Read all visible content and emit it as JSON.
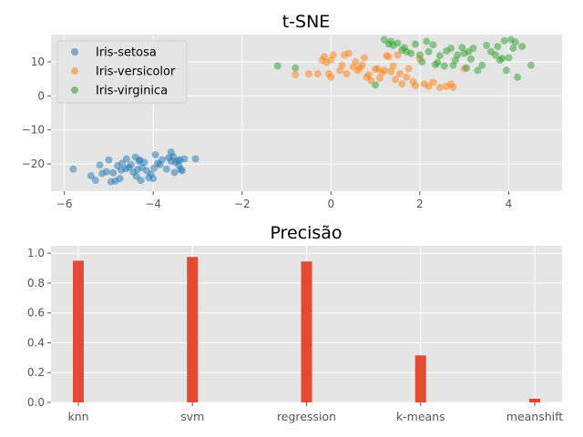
{
  "chart_data": [
    {
      "type": "scatter",
      "title": "t-SNE",
      "xlabel": "",
      "ylabel": "",
      "xlim": [
        -6.3,
        5.2
      ],
      "ylim": [
        -28,
        18
      ],
      "xticks": [
        -6,
        -4,
        -2,
        0,
        2,
        4
      ],
      "xtick_labels": [
        "−6",
        "−4",
        "−2",
        "0",
        "2",
        "4"
      ],
      "yticks": [
        -20,
        -10,
        0,
        10
      ],
      "ytick_labels": [
        "−20",
        "−10",
        "0",
        "10"
      ],
      "grid": true,
      "legend_position": "top-left",
      "series": [
        {
          "name": "Iris-setosa",
          "color": "#1f77b4",
          "points": [
            [
              -5.8,
              -21.5
            ],
            [
              -5.4,
              -23.5
            ],
            [
              -5.3,
              -24.8
            ],
            [
              -5.2,
              -20.3
            ],
            [
              -5.15,
              -22.8
            ],
            [
              -5.05,
              -22.3
            ],
            [
              -5.0,
              -18.8
            ],
            [
              -4.95,
              -25.2
            ],
            [
              -4.9,
              -22.6
            ],
            [
              -4.85,
              -25.0
            ],
            [
              -4.8,
              -20.5
            ],
            [
              -4.75,
              -24.3
            ],
            [
              -4.72,
              -21.8
            ],
            [
              -4.7,
              -19.8
            ],
            [
              -4.6,
              -18.5
            ],
            [
              -4.55,
              -21.0
            ],
            [
              -4.5,
              -20.2
            ],
            [
              -4.45,
              -22.4
            ],
            [
              -4.4,
              -18.0
            ],
            [
              -4.38,
              -23.6
            ],
            [
              -4.35,
              -21.6
            ],
            [
              -4.32,
              -19.2
            ],
            [
              -4.3,
              -18.8
            ],
            [
              -4.28,
              -24.8
            ],
            [
              -4.25,
              -21.0
            ],
            [
              -4.2,
              -19.5
            ],
            [
              -4.15,
              -22.0
            ],
            [
              -4.1,
              -24.0
            ],
            [
              -4.05,
              -23.0
            ],
            [
              -4.0,
              -24.3
            ],
            [
              -3.98,
              -21.2
            ],
            [
              -3.95,
              -17.3
            ],
            [
              -3.9,
              -19.8
            ],
            [
              -3.85,
              -20.2
            ],
            [
              -3.8,
              -18.8
            ],
            [
              -3.7,
              -21.5
            ],
            [
              -3.65,
              -18.2
            ],
            [
              -3.6,
              -16.5
            ],
            [
              -3.55,
              -17.8
            ],
            [
              -3.52,
              -22.5
            ],
            [
              -3.5,
              -19.5
            ],
            [
              -3.45,
              -19.0
            ],
            [
              -3.42,
              -20.5
            ],
            [
              -3.4,
              -18.8
            ],
            [
              -3.38,
              -21.6
            ],
            [
              -3.35,
              -22.0
            ],
            [
              -3.3,
              -18.5
            ],
            [
              -3.05,
              -18.5
            ],
            [
              -3.6,
              -19.2
            ],
            [
              -4.62,
              -21.4
            ]
          ]
        },
        {
          "name": "Iris-versicolor",
          "color": "#ff7f0e",
          "points": [
            [
              -0.8,
              6.2
            ],
            [
              -0.5,
              6.5
            ],
            [
              -0.3,
              6.5
            ],
            [
              -0.2,
              10.5
            ],
            [
              -0.15,
              11.5
            ],
            [
              -0.1,
              9.8
            ],
            [
              -0.05,
              6.5
            ],
            [
              0.0,
              10.5
            ],
            [
              0.0,
              5.5
            ],
            [
              0.05,
              12.0
            ],
            [
              0.2,
              7.5
            ],
            [
              0.25,
              9.0
            ],
            [
              0.3,
              12.0
            ],
            [
              0.35,
              6.5
            ],
            [
              0.4,
              12.5
            ],
            [
              0.5,
              8.5
            ],
            [
              0.55,
              10.0
            ],
            [
              0.6,
              7.5
            ],
            [
              0.65,
              8.2
            ],
            [
              0.7,
              9.0
            ],
            [
              0.75,
              11.2
            ],
            [
              0.8,
              5.5
            ],
            [
              0.85,
              6.2
            ],
            [
              0.9,
              4.5
            ],
            [
              1.0,
              7.8
            ],
            [
              1.05,
              8.0
            ],
            [
              1.1,
              5.2
            ],
            [
              1.15,
              6.8
            ],
            [
              1.2,
              7.5
            ],
            [
              1.25,
              11.8
            ],
            [
              1.3,
              11.5
            ],
            [
              1.35,
              7.2
            ],
            [
              1.4,
              8.8
            ],
            [
              1.45,
              4.8
            ],
            [
              1.5,
              12.0
            ],
            [
              1.55,
              6.5
            ],
            [
              1.6,
              3.5
            ],
            [
              1.7,
              5.5
            ],
            [
              1.75,
              8.0
            ],
            [
              1.85,
              4.2
            ],
            [
              1.9,
              3.0
            ],
            [
              2.0,
              10.8
            ],
            [
              2.1,
              3.5
            ],
            [
              2.2,
              2.8
            ],
            [
              2.3,
              4.0
            ],
            [
              2.45,
              2.5
            ],
            [
              2.6,
              2.8
            ],
            [
              2.7,
              3.5
            ],
            [
              2.75,
              2.5
            ],
            [
              3.0,
              8.0
            ]
          ]
        },
        {
          "name": "Iris-virginica",
          "color": "#2ca02c",
          "points": [
            [
              -1.2,
              8.8
            ],
            [
              -0.8,
              8.2
            ],
            [
              1.0,
              3.2
            ],
            [
              1.2,
              16.5
            ],
            [
              1.3,
              15.2
            ],
            [
              1.35,
              16.0
            ],
            [
              1.4,
              14.8
            ],
            [
              1.5,
              15.5
            ],
            [
              1.6,
              13.5
            ],
            [
              1.65,
              14.2
            ],
            [
              1.7,
              13.0
            ],
            [
              1.8,
              12.5
            ],
            [
              1.9,
              15.2
            ],
            [
              2.0,
              12.0
            ],
            [
              2.05,
              10.0
            ],
            [
              2.15,
              16.0
            ],
            [
              2.2,
              13.0
            ],
            [
              2.3,
              15.0
            ],
            [
              2.35,
              9.2
            ],
            [
              2.4,
              9.8
            ],
            [
              2.45,
              11.8
            ],
            [
              2.55,
              8.8
            ],
            [
              2.6,
              13.2
            ],
            [
              2.7,
              14.0
            ],
            [
              2.75,
              9.0
            ],
            [
              2.8,
              10.5
            ],
            [
              2.85,
              12.0
            ],
            [
              2.95,
              14.2
            ],
            [
              3.0,
              12.5
            ],
            [
              3.05,
              8.2
            ],
            [
              3.1,
              13.0
            ],
            [
              3.15,
              10.8
            ],
            [
              3.2,
              14.0
            ],
            [
              3.3,
              7.5
            ],
            [
              3.4,
              9.0
            ],
            [
              3.5,
              14.8
            ],
            [
              3.6,
              13.0
            ],
            [
              3.7,
              12.0
            ],
            [
              3.75,
              14.5
            ],
            [
              3.8,
              10.5
            ],
            [
              3.85,
              11.0
            ],
            [
              3.9,
              16.2
            ],
            [
              3.95,
              7.5
            ],
            [
              4.0,
              11.2
            ],
            [
              4.05,
              16.5
            ],
            [
              4.1,
              14.0
            ],
            [
              4.15,
              15.8
            ],
            [
              4.2,
              5.5
            ],
            [
              4.3,
              14.5
            ],
            [
              4.5,
              9.0
            ]
          ]
        }
      ]
    },
    {
      "type": "bar",
      "title": "Precisão",
      "xlabel": "",
      "ylabel": "",
      "categories": [
        "knn",
        "svm",
        "regression",
        "k-means",
        "meanshift"
      ],
      "values": [
        0.95,
        0.975,
        0.945,
        0.315,
        0.025
      ],
      "ylim": [
        0,
        1.05
      ],
      "yticks": [
        0.0,
        0.2,
        0.4,
        0.6,
        0.8,
        1.0
      ],
      "ytick_labels": [
        "0.0",
        "0.2",
        "0.4",
        "0.6",
        "0.8",
        "1.0"
      ],
      "color": "#e24a33",
      "grid": true
    }
  ]
}
